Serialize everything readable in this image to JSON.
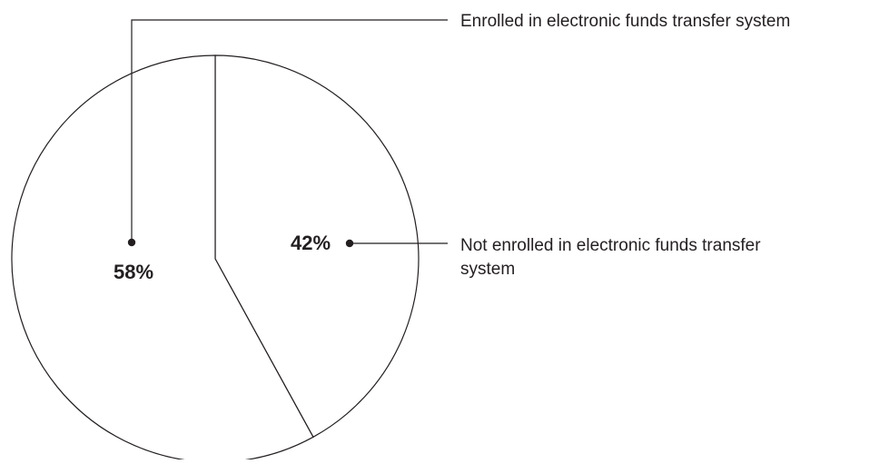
{
  "chart_data": {
    "type": "pie",
    "slices": [
      {
        "label": "Enrolled in electronic funds transfer system",
        "value": 58,
        "value_label": "58%"
      },
      {
        "label": "Not enrolled in electronic funds transfer system",
        "value": 42,
        "value_label": "42%"
      }
    ],
    "title": "",
    "legend": "callout",
    "colors": {
      "fill": "#ffffff",
      "stroke": "#231f20"
    }
  }
}
